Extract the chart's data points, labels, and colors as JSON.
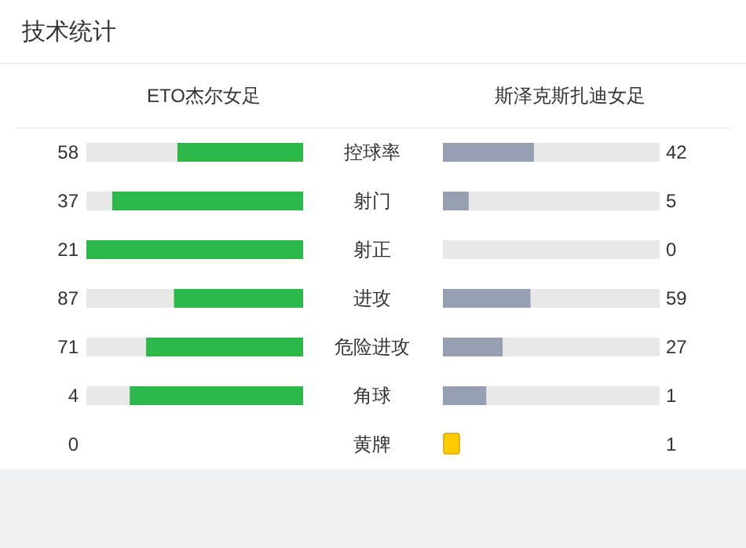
{
  "chart_data": {
    "type": "other",
    "title": "技术统计",
    "data_labels": true,
    "categories": [
      "控球率",
      "射门",
      "射正",
      "进攻",
      "危险进攻",
      "角球",
      "黄牌"
    ],
    "series": [
      {
        "name": "ETO杰尔女足",
        "values": [
          58,
          37,
          21,
          87,
          71,
          4,
          0
        ],
        "colors": [
          "#2db84c",
          "#2db84c",
          "#2db84c",
          "#2db84c",
          "#2db84c",
          "#2db84c",
          "#ffcc00"
        ]
      },
      {
        "name": "斯泽克斯扎迪女足",
        "values": [
          42,
          5,
          0,
          59,
          27,
          1,
          1
        ],
        "colors": [
          "#97a0b3",
          "#97a0b3",
          "#97a0b3",
          "#97a0b3",
          "#97a0b3",
          "#97a0b3",
          "#ffcc00"
        ]
      }
    ]
  }
}
